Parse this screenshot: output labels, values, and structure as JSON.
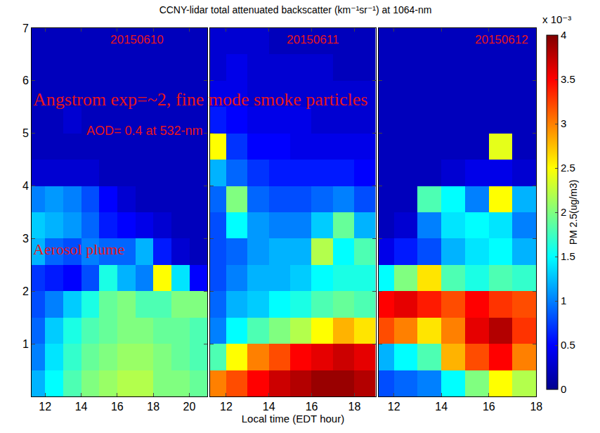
{
  "chart_data": {
    "type": "heatmap",
    "title": "CCNY-lidar total attenuated backscatter (km⁻¹sr⁻¹) at 1064-nm",
    "x_label": "Local time (EDT hour)",
    "y": [
      0.25,
      0.75,
      1.25,
      1.75,
      2.25,
      2.75,
      3.25,
      3.75,
      4.25,
      4.75,
      5.25,
      5.75,
      6.25,
      6.75
    ],
    "ylim": [
      0,
      7
    ],
    "yticks": [
      1,
      2,
      3,
      4,
      5,
      6,
      7
    ],
    "panels": [
      {
        "label": "20150610",
        "x": [
          11.5,
          12.5,
          13.5,
          14.5,
          15.5,
          16.5,
          17.5,
          18.5,
          19.5,
          20.5
        ],
        "xlim": [
          11.25,
          21
        ],
        "xticks": [
          12,
          14,
          16,
          18,
          20
        ],
        "z": [
          [
            1.2,
            1.5,
            1.8,
            2.0,
            2.1,
            2.2,
            2.2,
            2.0,
            2.0,
            1.9
          ],
          [
            1.0,
            1.4,
            1.7,
            1.9,
            2.0,
            2.1,
            2.1,
            2.0,
            1.9,
            1.8
          ],
          [
            0.9,
            1.3,
            1.6,
            1.8,
            1.9,
            2.0,
            2.0,
            1.9,
            1.9,
            1.8
          ],
          [
            0.8,
            1.0,
            1.3,
            1.6,
            1.9,
            2.0,
            1.8,
            1.8,
            2.0,
            2.0
          ],
          [
            0.7,
            0.6,
            0.5,
            0.8,
            1.6,
            1.2,
            1.0,
            2.5,
            1.4,
            0.5
          ],
          [
            1.2,
            0.9,
            0.8,
            1.0,
            0.9,
            0.9,
            1.2,
            0.6,
            0.3,
            0.2
          ],
          [
            1.3,
            1.2,
            1.1,
            0.9,
            0.6,
            0.5,
            0.4,
            0.3,
            0.2,
            0.2
          ],
          [
            1.0,
            1.1,
            1.0,
            0.8,
            0.5,
            0.3,
            0.2,
            0.2,
            0.2,
            0.2
          ],
          [
            0.3,
            0.3,
            0.3,
            0.3,
            0.2,
            0.2,
            0.2,
            0.2,
            0.2,
            0.2
          ],
          [
            0.2,
            0.2,
            0.2,
            0.2,
            0.2,
            0.2,
            0.2,
            0.2,
            0.2,
            0.2
          ],
          [
            0.2,
            0.2,
            0.3,
            0.2,
            0.2,
            0.2,
            0.2,
            0.2,
            0.2,
            0.2
          ],
          [
            0.2,
            0.2,
            0.2,
            0.2,
            0.2,
            0.2,
            0.2,
            0.2,
            0.2,
            0.2
          ],
          [
            0.2,
            0.2,
            0.2,
            0.2,
            0.2,
            0.2,
            0.2,
            0.2,
            0.2,
            0.2
          ],
          [
            0.2,
            0.2,
            0.2,
            0.2,
            0.2,
            0.2,
            0.2,
            0.2,
            0.2,
            0.2
          ]
        ]
      },
      {
        "label": "20150611",
        "x": [
          11.5,
          12.5,
          13.5,
          14.5,
          15.5,
          16.5,
          17.5,
          18.5
        ],
        "xlim": [
          11.25,
          19
        ],
        "xticks": [
          12,
          14,
          16,
          18
        ],
        "z": [
          [
            3.0,
            3.2,
            3.5,
            3.7,
            3.8,
            3.9,
            3.9,
            3.8
          ],
          [
            1.8,
            2.5,
            3.0,
            3.2,
            3.5,
            3.6,
            3.7,
            3.6
          ],
          [
            1.0,
            1.5,
            1.8,
            2.0,
            2.2,
            2.5,
            2.8,
            2.6
          ],
          [
            0.9,
            1.2,
            1.3,
            1.5,
            1.6,
            1.8,
            1.9,
            1.8
          ],
          [
            0.8,
            1.0,
            1.2,
            1.2,
            1.3,
            1.5,
            1.6,
            1.6
          ],
          [
            0.8,
            0.9,
            1.1,
            1.2,
            1.2,
            2.2,
            1.5,
            1.8
          ],
          [
            0.8,
            1.5,
            1.1,
            1.0,
            1.0,
            1.3,
            1.9,
            1.2
          ],
          [
            0.9,
            2.0,
            0.9,
            0.8,
            0.8,
            0.9,
            1.0,
            0.8
          ],
          [
            1.2,
            0.9,
            0.7,
            0.6,
            0.6,
            0.6,
            0.6,
            0.5
          ],
          [
            2.5,
            0.7,
            0.5,
            0.5,
            0.4,
            0.4,
            0.4,
            0.4
          ],
          [
            0.6,
            0.5,
            0.4,
            0.4,
            0.4,
            0.3,
            0.3,
            0.3
          ],
          [
            0.4,
            0.4,
            0.3,
            0.3,
            0.3,
            0.3,
            0.3,
            0.3
          ],
          [
            0.3,
            0.4,
            0.3,
            0.3,
            0.3,
            0.3,
            0.2,
            0.2
          ],
          [
            0.3,
            0.3,
            0.3,
            0.2,
            0.2,
            0.2,
            0.2,
            0.2
          ]
        ]
      },
      {
        "label": "20150612",
        "x": [
          11.5,
          12.5,
          13.5,
          14.5,
          15.5,
          16.5,
          17.5
        ],
        "xlim": [
          11.35,
          18
        ],
        "xticks": [
          12,
          14,
          16,
          18
        ],
        "z": [
          [
            0.8,
            0.9,
            1.0,
            1.5,
            2.0,
            2.5,
            2.2
          ],
          [
            1.2,
            1.5,
            1.8,
            2.8,
            3.2,
            3.5,
            3.0
          ],
          [
            3.2,
            3.0,
            2.6,
            3.0,
            3.6,
            3.8,
            3.3
          ],
          [
            3.5,
            3.6,
            3.4,
            3.2,
            3.5,
            3.3,
            3.2
          ],
          [
            1.5,
            2.0,
            2.6,
            1.8,
            1.6,
            1.8,
            1.7
          ],
          [
            0.4,
            0.6,
            0.8,
            1.2,
            1.4,
            1.5,
            1.2
          ],
          [
            0.2,
            0.3,
            1.0,
            1.4,
            1.5,
            1.4,
            1.0
          ],
          [
            0.2,
            0.2,
            1.8,
            1.5,
            1.0,
            2.5,
            1.2
          ],
          [
            0.2,
            0.2,
            0.2,
            0.3,
            0.4,
            0.4,
            0.3
          ],
          [
            0.2,
            0.2,
            0.2,
            0.2,
            0.2,
            2.4,
            0.2
          ],
          [
            0.2,
            0.2,
            0.2,
            0.2,
            0.2,
            0.2,
            0.2
          ],
          [
            0.2,
            0.2,
            0.2,
            0.2,
            0.2,
            0.2,
            0.2
          ],
          [
            0.2,
            0.2,
            0.2,
            0.2,
            0.2,
            0.2,
            0.2
          ],
          [
            0.2,
            0.2,
            0.2,
            0.2,
            0.2,
            0.2,
            0.2
          ]
        ]
      }
    ],
    "colorbar": {
      "title": "PM 2.5(ug/m3)",
      "multiplier": "x 10⁻³",
      "range": [
        0,
        4
      ],
      "ticks": [
        0,
        0.5,
        1,
        1.5,
        2,
        2.5,
        3,
        3.5,
        4
      ]
    },
    "annotations": [
      "Angstrom exp=~2, fine mode smoke particles",
      "AOD= 0.4 at 532-nm",
      "Aerosol plume"
    ]
  }
}
